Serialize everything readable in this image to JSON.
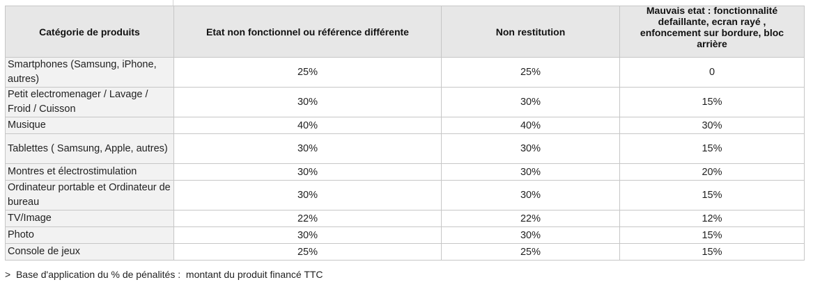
{
  "table": {
    "headers": [
      "Catégorie de produits",
      "Etat non fonctionnel ou référence différente",
      "Non restitution",
      "Mauvais etat : fonctionnalité defaillante, ecran rayé , enfoncement sur bordure, bloc arrière"
    ],
    "rows": [
      {
        "category": "Smartphones (Samsung, iPhone, autres)",
        "non_fonctionnel": "25%",
        "non_restitution": "25%",
        "mauvais_etat": "0"
      },
      {
        "category": "Petit electromenager / Lavage / Froid / Cuisson",
        "non_fonctionnel": "30%",
        "non_restitution": "30%",
        "mauvais_etat": "15%"
      },
      {
        "category": "Musique",
        "non_fonctionnel": "40%",
        "non_restitution": "40%",
        "mauvais_etat": "30%"
      },
      {
        "category": "Tablettes ( Samsung, Apple, autres)",
        "non_fonctionnel": "30%",
        "non_restitution": "30%",
        "mauvais_etat": "15%"
      },
      {
        "category": "Montres et électrostimulation",
        "non_fonctionnel": "30%",
        "non_restitution": "30%",
        "mauvais_etat": "20%"
      },
      {
        "category": "Ordinateur portable  et Ordinateur de bureau",
        "non_fonctionnel": "30%",
        "non_restitution": "30%",
        "mauvais_etat": "15%"
      },
      {
        "category": "TV/Image",
        "non_fonctionnel": "22%",
        "non_restitution": "22%",
        "mauvais_etat": "12%"
      },
      {
        "category": "Photo",
        "non_fonctionnel": "30%",
        "non_restitution": "30%",
        "mauvais_etat": "15%"
      },
      {
        "category": "Console de jeux",
        "non_fonctionnel": "25%",
        "non_restitution": "25%",
        "mauvais_etat": "15%"
      }
    ]
  },
  "footnote": ">  Base d'application du % de pénalités :  montant du produit financé TTC"
}
